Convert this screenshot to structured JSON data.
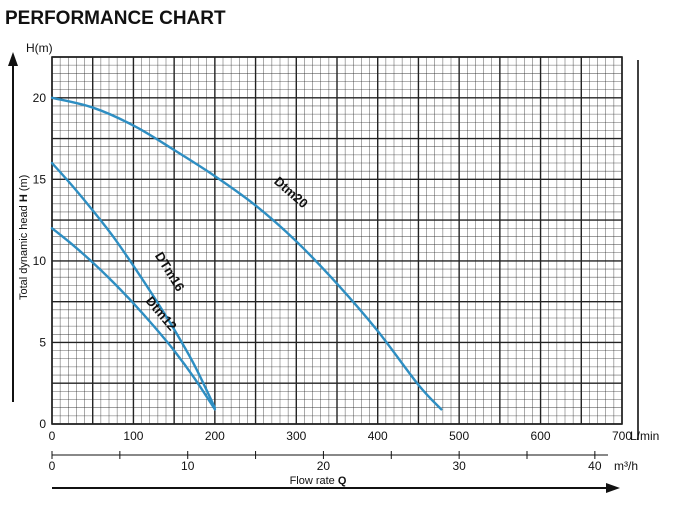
{
  "header": {
    "title": "PERFORMANCE CHART"
  },
  "chart_data": {
    "type": "line",
    "title": "PERFORMANCE CHART",
    "ylabel_top": "H(m)",
    "ylabel_side": [
      "Total dynamic head ",
      "H",
      " (m)"
    ],
    "xlabel_bottom": [
      "Flow rate ",
      "Q"
    ],
    "x_unit_primary": "L/min",
    "x_unit_secondary": "m³/h",
    "xlim": [
      0,
      700
    ],
    "ylim": [
      0,
      22.5
    ],
    "x_ticks": [
      0,
      100,
      200,
      300,
      400,
      500,
      600,
      700
    ],
    "x_tick_labels": [
      "0",
      "100",
      "200",
      "300",
      "400",
      "500",
      "600",
      "700"
    ],
    "y_ticks": [
      0,
      5,
      10,
      15,
      20
    ],
    "y_tick_labels": [
      "0",
      "5",
      "10",
      "15",
      "20"
    ],
    "x2_ticks": [
      0,
      10,
      20,
      30,
      40
    ],
    "x2_tick_labels": [
      "0",
      "10",
      "20",
      "30",
      "40"
    ],
    "grid": true,
    "colors": {
      "curve": "#2e8ec2",
      "grid": "#222222",
      "axis": "#111111"
    },
    "series": [
      {
        "name": "Dtm20",
        "x": [
          0,
          50,
          100,
          150,
          200,
          250,
          300,
          350,
          400,
          450,
          478
        ],
        "y": [
          20,
          19.4,
          18.3,
          16.8,
          15.2,
          13.4,
          11.2,
          8.6,
          5.7,
          2.4,
          0.9
        ]
      },
      {
        "name": "DTm16",
        "x": [
          0,
          25,
          50,
          75,
          100,
          125,
          150,
          175,
          200
        ],
        "y": [
          16,
          14.6,
          13.1,
          11.5,
          9.7,
          7.8,
          5.8,
          3.6,
          1.0
        ]
      },
      {
        "name": "Dtm12",
        "x": [
          0,
          25,
          50,
          75,
          100,
          125,
          150,
          175,
          200
        ],
        "y": [
          12,
          11,
          9.9,
          8.7,
          7.4,
          6.0,
          4.5,
          2.8,
          0.9
        ]
      }
    ],
    "curve_labels": [
      {
        "text": "Dtm20",
        "at_x": 290,
        "at_y": 14.0
      },
      {
        "text": "DTm16",
        "at_x": 140,
        "at_y": 9.2
      },
      {
        "text": "Dtm12",
        "at_x": 130,
        "at_y": 6.6
      }
    ]
  }
}
